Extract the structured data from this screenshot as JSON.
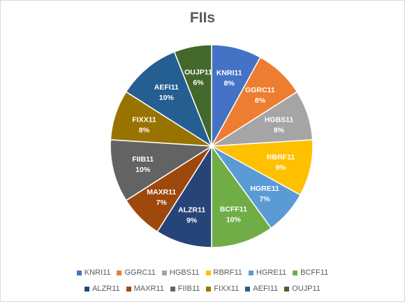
{
  "chart_data": {
    "type": "pie",
    "title": "FIIs",
    "legend_position": "bottom",
    "slices": [
      {
        "name": "KNRI11",
        "value": 8,
        "label": "8%",
        "color": "#4472C4"
      },
      {
        "name": "GGRC11",
        "value": 8,
        "label": "8%",
        "color": "#ED7D31"
      },
      {
        "name": "HGBS11",
        "value": 8,
        "label": "8%",
        "color": "#A5A5A5"
      },
      {
        "name": "RBRF11",
        "value": 9,
        "label": "9%",
        "color": "#FFC000"
      },
      {
        "name": "HGRE11",
        "value": 7,
        "label": "7%",
        "color": "#5B9BD5"
      },
      {
        "name": "BCFF11",
        "value": 10,
        "label": "10%",
        "color": "#70AD47"
      },
      {
        "name": "ALZR11",
        "value": 9,
        "label": "9%",
        "color": "#264478"
      },
      {
        "name": "MAXR11",
        "value": 7,
        "label": "7%",
        "color": "#9E480E"
      },
      {
        "name": "FIIB11",
        "value": 10,
        "label": "10%",
        "color": "#636363"
      },
      {
        "name": "FIXX11",
        "value": 8,
        "label": "8%",
        "color": "#997300"
      },
      {
        "name": "AEFI11",
        "value": 10,
        "label": "10%",
        "color": "#255E91"
      },
      {
        "name": "OUJP11",
        "value": 6,
        "label": "6%",
        "color": "#43682B"
      }
    ]
  }
}
